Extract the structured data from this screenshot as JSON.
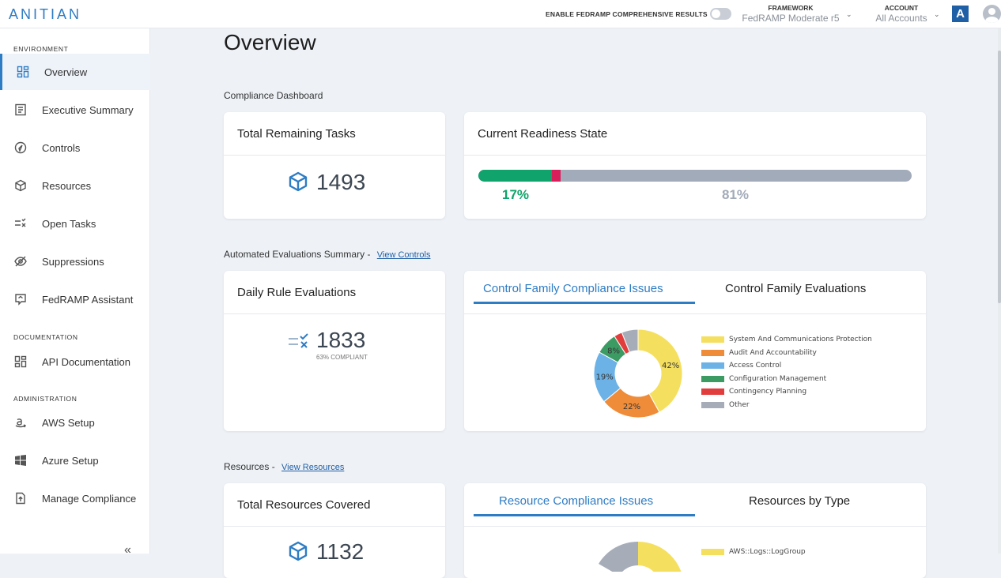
{
  "header": {
    "logo": "ANITIAN",
    "toggle_label": "ENABLE FEDRAMP COMPREHENSIVE RESULTS",
    "framework_key": "FRAMEWORK",
    "framework_value": "FedRAMP Moderate r5",
    "account_key": "ACCOUNT",
    "account_value": "All Accounts",
    "badge": "A"
  },
  "sidebar": {
    "sections": {
      "environment": "ENVIRONMENT",
      "documentation": "DOCUMENTATION",
      "administration": "ADMINISTRATION"
    },
    "items": [
      {
        "label": "Overview",
        "icon": "dashboard-icon"
      },
      {
        "label": "Executive Summary",
        "icon": "document-icon"
      },
      {
        "label": "Controls",
        "icon": "compass-icon"
      },
      {
        "label": "Resources",
        "icon": "cube-icon"
      },
      {
        "label": "Open Tasks",
        "icon": "tasks-icon"
      },
      {
        "label": "Suppressions",
        "icon": "eye-off-icon"
      },
      {
        "label": "FedRAMP Assistant",
        "icon": "assistant-icon"
      },
      {
        "label": "API Documentation",
        "icon": "api-icon"
      },
      {
        "label": "AWS Setup",
        "icon": "aws-icon"
      },
      {
        "label": "Azure Setup",
        "icon": "windows-icon"
      },
      {
        "label": "Manage Compliance",
        "icon": "upload-file-icon"
      }
    ],
    "collapse": "«"
  },
  "main": {
    "title": "Overview",
    "compliance_dashboard": "Compliance Dashboard",
    "total_tasks_title": "Total Remaining Tasks",
    "total_tasks_value": "1493",
    "readiness_title": "Current Readiness State",
    "readiness_green": 17,
    "readiness_red": 2,
    "readiness_green_label": "17%",
    "readiness_other_label": "81%",
    "automated_label": "Automated Evaluations Summary",
    "view_controls": "View Controls",
    "daily_title": "Daily Rule Evaluations",
    "daily_value": "1833",
    "daily_sub": "63% COMPLIANT",
    "tab1": "Control Family Compliance Issues",
    "tab2": "Control Family Evaluations",
    "resources_label": "Resources",
    "view_resources": "View Resources",
    "resources_title": "Total Resources Covered",
    "resources_value": "1132",
    "tab3": "Resource Compliance Issues",
    "tab4": "Resources by Type",
    "resource_legend_first": "AWS::Logs::LogGroup"
  },
  "colors": {
    "brand": "#2e7cc4",
    "green": "#10a36b",
    "red": "#d81e5b",
    "grey": "#a2abb9"
  },
  "chart_data": {
    "type": "pie",
    "series": [
      {
        "name": "System And Communications Protection",
        "value": 42,
        "label": "42%",
        "color": "#f5df5f"
      },
      {
        "name": "Audit And Accountability",
        "value": 22,
        "label": "22%",
        "color": "#ef8c3a"
      },
      {
        "name": "Access Control",
        "value": 19,
        "label": "19%",
        "color": "#6cb2e6"
      },
      {
        "name": "Configuration Management",
        "value": 8,
        "label": "8%",
        "color": "#3c9b63"
      },
      {
        "name": "Contingency Planning",
        "value": 3,
        "label": "",
        "color": "#e23d3d"
      },
      {
        "name": "Other",
        "value": 6,
        "label": "",
        "color": "#a6adb8"
      }
    ]
  }
}
